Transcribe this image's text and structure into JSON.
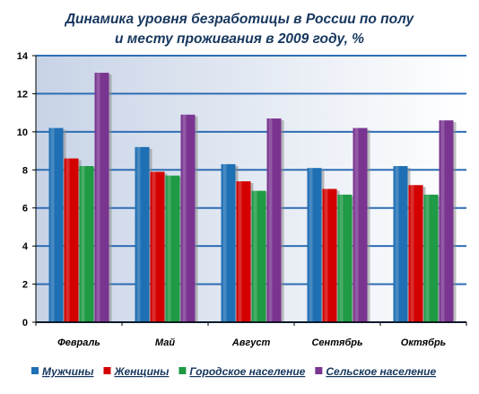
{
  "chart_data": {
    "type": "bar",
    "title_lines": [
      "Динамика уровня  безработицы в России по полу",
      "и месту проживания в 2009 году, %"
    ],
    "categories": [
      "Февраль",
      "Май",
      "Август",
      "Сентябрь",
      "Октябрь"
    ],
    "series": [
      {
        "name": "Мужчины",
        "values": [
          10.2,
          9.2,
          8.3,
          8.1,
          8.2
        ],
        "color": "#1f6fb4"
      },
      {
        "name": "Женщины",
        "values": [
          8.6,
          7.9,
          7.4,
          7.0,
          7.2
        ],
        "color": "#d40000"
      },
      {
        "name": "Городское население",
        "values": [
          8.2,
          7.7,
          6.9,
          6.7,
          6.7
        ],
        "color": "#1f9a45"
      },
      {
        "name": "Сельское население",
        "values": [
          13.1,
          10.9,
          10.7,
          10.2,
          10.6
        ],
        "color": "#7a3590"
      }
    ],
    "ylim": [
      0,
      14
    ],
    "yticks": [
      0,
      2,
      4,
      6,
      8,
      10,
      12,
      14
    ],
    "grid": true,
    "legend_position": "bottom"
  }
}
